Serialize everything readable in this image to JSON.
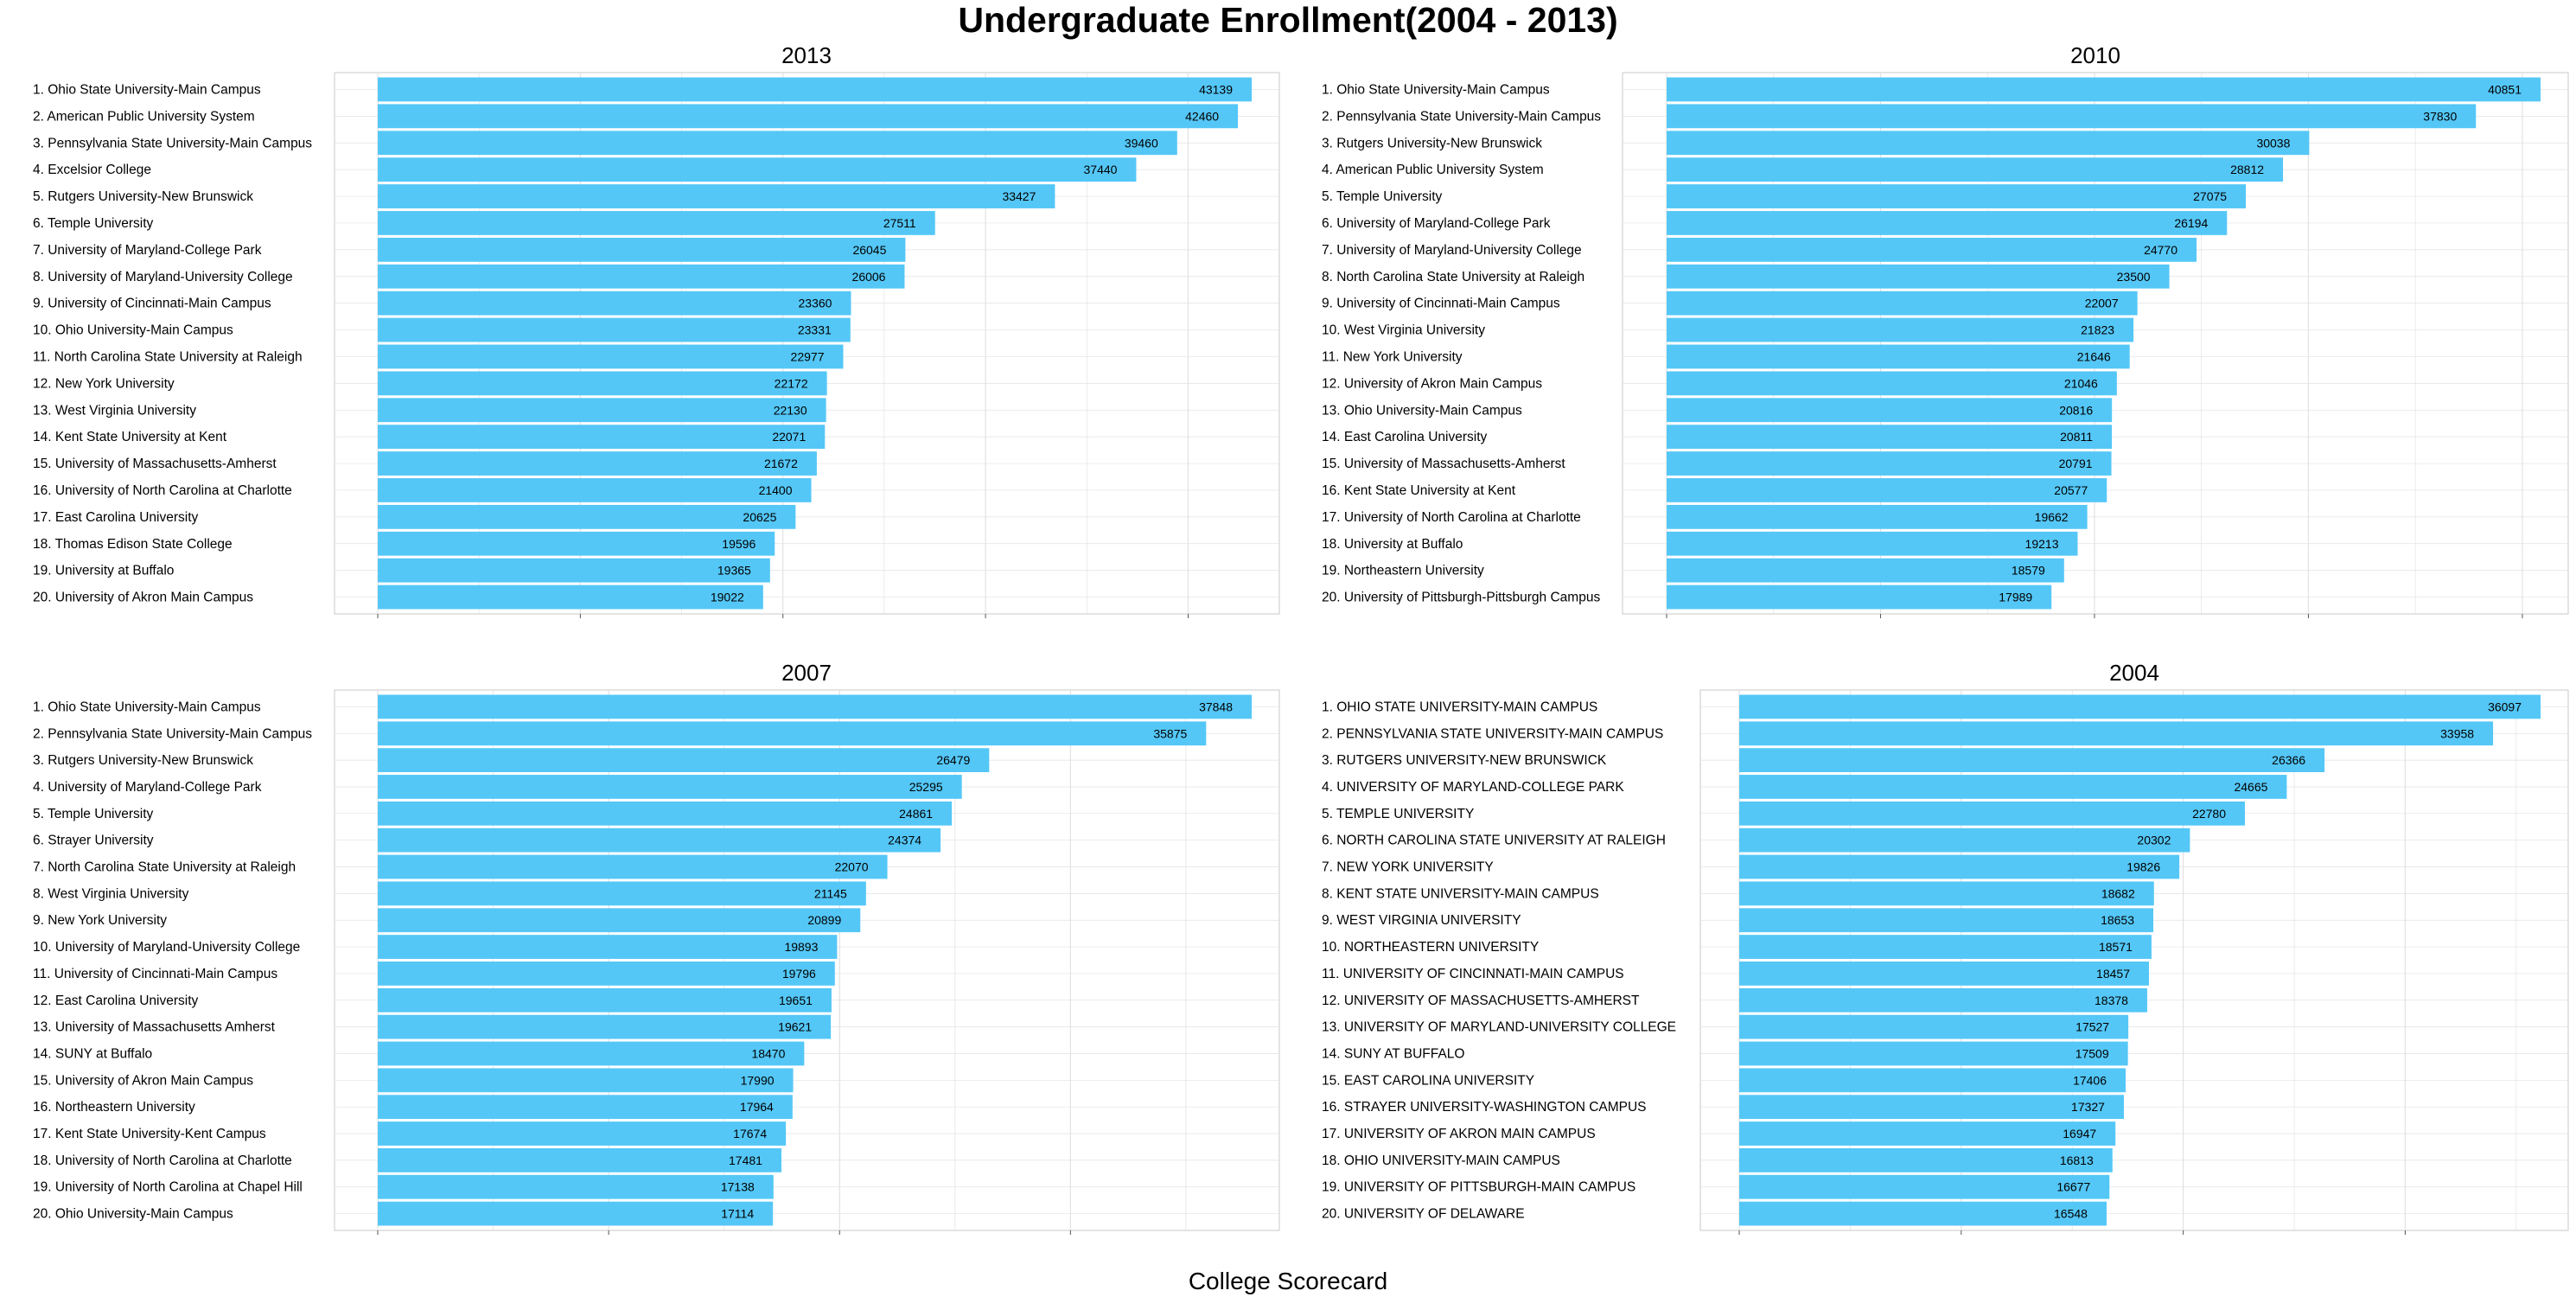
{
  "title": "Undergraduate Enrollment(2004 - 2013)",
  "caption": "College Scorecard",
  "colors": {
    "bar": "#54c7f7",
    "grid": "#e2e2e2",
    "panel_border": "#c8c8c8"
  },
  "chart_data": [
    {
      "type": "bar",
      "orientation": "horizontal",
      "title": "2013",
      "xlim": [
        0,
        45000
      ],
      "categories": [
        "1. Ohio State University-Main Campus",
        "2. American Public University System",
        "3. Pennsylvania State University-Main Campus",
        "4. Excelsior College",
        "5. Rutgers University-New Brunswick",
        "6. Temple University",
        "7. University of Maryland-College Park",
        "8. University of Maryland-University College",
        "9. University of Cincinnati-Main Campus",
        "10. Ohio University-Main Campus",
        "11. North Carolina State University at Raleigh",
        "12. New York University",
        "13. West Virginia University",
        "14. Kent State University at Kent",
        "15. University of Massachusetts-Amherst",
        "16. University of North Carolina at Charlotte",
        "17. East Carolina University",
        "18. Thomas Edison State College",
        "19. University at Buffalo",
        "20. University of Akron Main Campus"
      ],
      "values": [
        43139,
        42460,
        39460,
        37440,
        33427,
        27511,
        26045,
        26006,
        23360,
        23331,
        22977,
        22172,
        22130,
        22071,
        21672,
        21400,
        20625,
        19596,
        19365,
        19022
      ]
    },
    {
      "type": "bar",
      "orientation": "horizontal",
      "title": "2010",
      "xlim": [
        0,
        42000
      ],
      "categories": [
        "1. Ohio State University-Main Campus",
        "2. Pennsylvania State University-Main Campus",
        "3. Rutgers University-New Brunswick",
        "4. American Public University System",
        "5. Temple University",
        "6. University of Maryland-College Park",
        "7. University of Maryland-University College",
        "8. North Carolina State University at Raleigh",
        "9. University of Cincinnati-Main Campus",
        "10. West Virginia University",
        "11. New York University",
        "12. University of Akron Main Campus",
        "13. Ohio University-Main Campus",
        "14. East Carolina University",
        "15. University of Massachusetts-Amherst",
        "16. Kent State University at Kent",
        "17. University of North Carolina at Charlotte",
        "18. University at Buffalo",
        "19. Northeastern University",
        "20. University of Pittsburgh-Pittsburgh Campus"
      ],
      "values": [
        40851,
        37830,
        30038,
        28812,
        27075,
        26194,
        24770,
        23500,
        22007,
        21823,
        21646,
        21046,
        20816,
        20811,
        20791,
        20577,
        19662,
        19213,
        18579,
        17989
      ]
    },
    {
      "type": "bar",
      "orientation": "horizontal",
      "title": "2007",
      "xlim": [
        0,
        40000
      ],
      "categories": [
        "1. Ohio State University-Main Campus",
        "2. Pennsylvania State University-Main Campus",
        "3. Rutgers University-New Brunswick",
        "4. University of Maryland-College Park",
        "5. Temple University",
        "6. Strayer University",
        "7. North Carolina State University at Raleigh",
        "8. West Virginia University",
        "9. New York University",
        "10. University of Maryland-University College",
        "11. University of Cincinnati-Main Campus",
        "12. East Carolina University",
        "13. University of Massachusetts Amherst",
        "14. SUNY at Buffalo",
        "15. University of Akron Main Campus",
        "16. Northeastern University",
        "17. Kent State University-Kent Campus",
        "18. University of North Carolina at Charlotte",
        "19. University of North Carolina at Chapel Hill",
        "20. Ohio University-Main Campus"
      ],
      "values": [
        37848,
        35875,
        26479,
        25295,
        24861,
        24374,
        22070,
        21145,
        20899,
        19893,
        19796,
        19651,
        19621,
        18470,
        17990,
        17964,
        17674,
        17481,
        17138,
        17114
      ]
    },
    {
      "type": "bar",
      "orientation": "horizontal",
      "title": "2004",
      "xlim": [
        0,
        38000
      ],
      "categories": [
        "1. OHIO STATE UNIVERSITY-MAIN CAMPUS",
        "2. PENNSYLVANIA STATE UNIVERSITY-MAIN CAMPUS",
        "3. RUTGERS UNIVERSITY-NEW BRUNSWICK",
        "4. UNIVERSITY OF MARYLAND-COLLEGE PARK",
        "5. TEMPLE UNIVERSITY",
        "6. NORTH CAROLINA STATE UNIVERSITY AT RALEIGH",
        "7. NEW YORK UNIVERSITY",
        "8. KENT STATE UNIVERSITY-MAIN CAMPUS",
        "9. WEST VIRGINIA UNIVERSITY",
        "10. NORTHEASTERN UNIVERSITY",
        "11. UNIVERSITY OF CINCINNATI-MAIN CAMPUS",
        "12. UNIVERSITY OF MASSACHUSETTS-AMHERST",
        "13. UNIVERSITY OF MARYLAND-UNIVERSITY COLLEGE",
        "14. SUNY AT BUFFALO",
        "15. EAST CAROLINA UNIVERSITY",
        "16. STRAYER UNIVERSITY-WASHINGTON CAMPUS",
        "17. UNIVERSITY OF AKRON MAIN CAMPUS",
        "18. OHIO UNIVERSITY-MAIN CAMPUS",
        "19. UNIVERSITY OF PITTSBURGH-MAIN CAMPUS",
        "20. UNIVERSITY OF DELAWARE"
      ],
      "values": [
        36097,
        33958,
        26366,
        24665,
        22780,
        20302,
        19826,
        18682,
        18653,
        18571,
        18457,
        18378,
        17527,
        17509,
        17406,
        17327,
        16947,
        16813,
        16677,
        16548
      ]
    }
  ]
}
